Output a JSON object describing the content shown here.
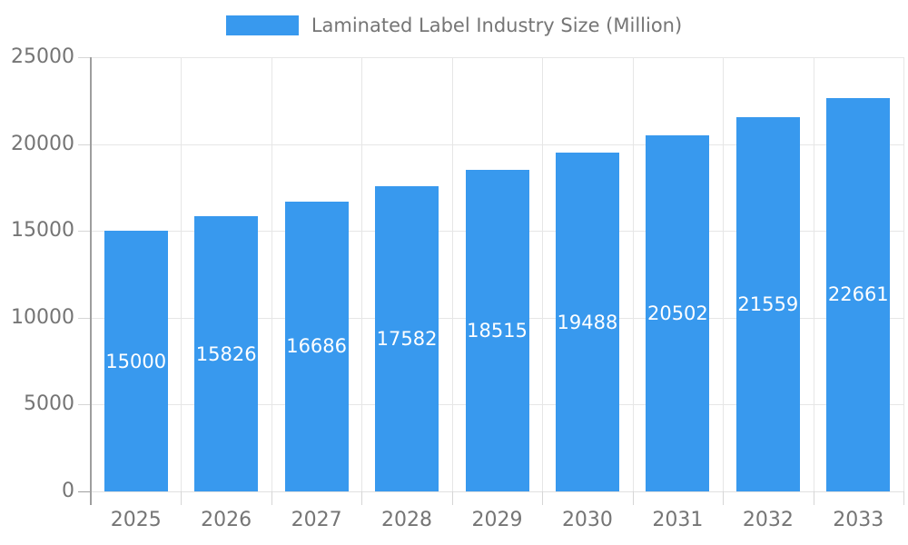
{
  "chart_data": {
    "type": "bar",
    "title": "",
    "categories": [
      "2025",
      "2026",
      "2027",
      "2028",
      "2029",
      "2030",
      "2031",
      "2032",
      "2033"
    ],
    "values": [
      15000,
      15826,
      16686,
      17582,
      18515,
      19488,
      20502,
      21559,
      22661
    ],
    "series_name": "Laminated Label Industry Size (Million)",
    "xlabel": "",
    "ylabel": "",
    "ylim": [
      0,
      25000
    ],
    "yticks": [
      0,
      5000,
      10000,
      15000,
      20000,
      25000
    ],
    "grid": true,
    "legend_position": "top-center",
    "value_labels": "white text centered inside bars",
    "colors": {
      "bar": "#3899EE",
      "axis_line": "#9e9e9e",
      "gridline": "#e6e6e6",
      "tick": "#d6d6d6",
      "axis_text": "#757575",
      "value_text": "#ffffff",
      "background": "#ffffff"
    }
  }
}
